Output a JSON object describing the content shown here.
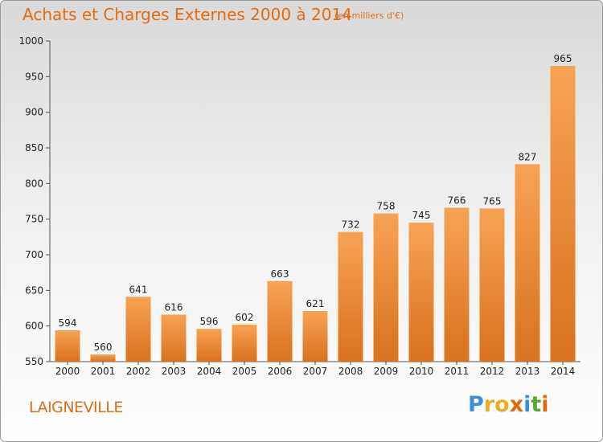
{
  "header": {
    "title": "Achats et Charges Externes 2000 à 2014",
    "subtitle": "(en milliers d'€)"
  },
  "footer": {
    "place": "LAIGNEVILLE",
    "logo_text": "Proxiti",
    "logo_letters": [
      {
        "char": "P",
        "color": "#3a8fd8"
      },
      {
        "char": "r",
        "color": "#e8b020"
      },
      {
        "char": "o",
        "color": "#e8b020"
      },
      {
        "char": "x",
        "color": "#e06a10"
      },
      {
        "char": "i",
        "color": "#3a8fd8"
      },
      {
        "char": "t",
        "color": "#5aaa30"
      },
      {
        "char": "i",
        "color": "#e06a10"
      }
    ]
  },
  "colors": {
    "accent": "#e36d12",
    "bar_top": "#f7a354",
    "bar_bottom": "#d9721c"
  },
  "chart_data": {
    "type": "bar",
    "title": "Achats et Charges Externes 2000 à 2014",
    "subtitle": "(en milliers d'€)",
    "xlabel": "",
    "ylabel": "",
    "ylim": [
      550,
      1000
    ],
    "yticks": [
      550,
      600,
      650,
      700,
      750,
      800,
      850,
      900,
      950,
      1000
    ],
    "grid": false,
    "categories": [
      "2000",
      "2001",
      "2002",
      "2003",
      "2004",
      "2005",
      "2006",
      "2007",
      "2008",
      "2009",
      "2010",
      "2011",
      "2012",
      "2013",
      "2014"
    ],
    "values": [
      594,
      560,
      641,
      616,
      596,
      602,
      663,
      621,
      732,
      758,
      745,
      766,
      765,
      827,
      965
    ]
  }
}
